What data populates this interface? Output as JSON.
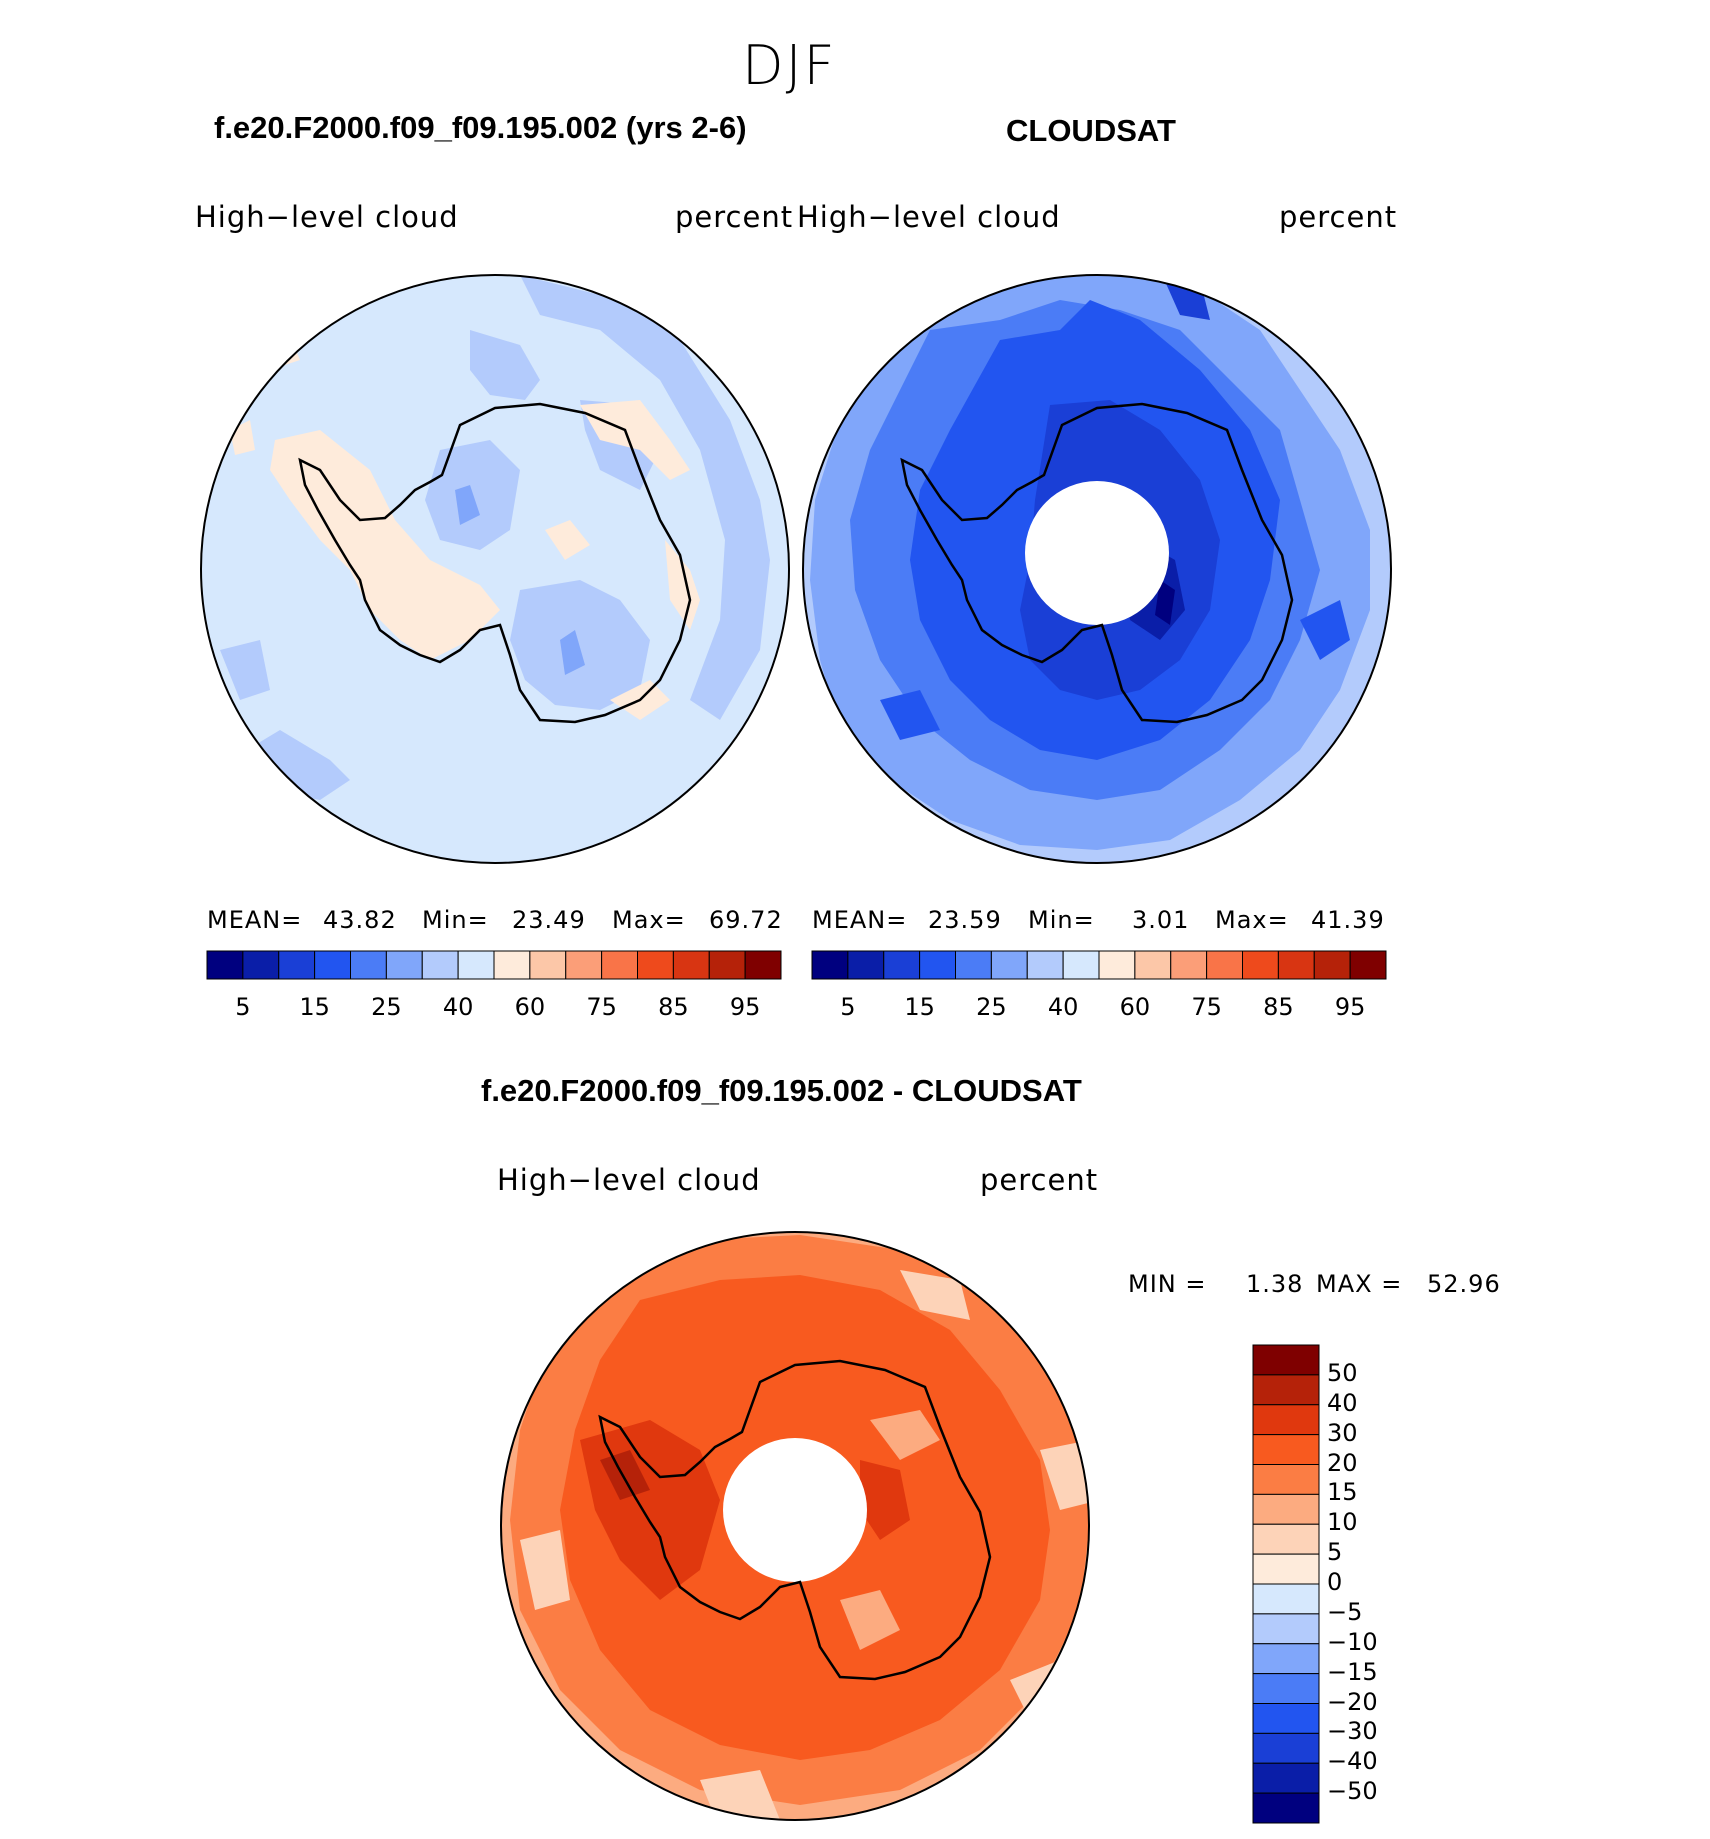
{
  "page_title": "DJF",
  "panels": [
    {
      "id": "model",
      "title": "f.e20.F2000.f09_f09.195.002 (yrs 2-6)",
      "variable": "High−level  cloud",
      "units": "percent",
      "stats": {
        "mean_label": "MEAN=",
        "mean": "43.82",
        "min_label": "Min=",
        "min": "23.49",
        "max_label": "Max=",
        "max": "69.72"
      },
      "colorbar_ticks": [
        "5",
        "15",
        "25",
        "40",
        "60",
        "75",
        "85",
        "95"
      ]
    },
    {
      "id": "obs",
      "title": "CLOUDSAT",
      "variable": "High−level  cloud",
      "units": "percent",
      "stats": {
        "mean_label": "MEAN=",
        "mean": "23.59",
        "min_label": "Min=",
        "min": "3.01",
        "max_label": "Max=",
        "max": "41.39"
      },
      "colorbar_ticks": [
        "5",
        "15",
        "25",
        "40",
        "60",
        "75",
        "85",
        "95"
      ]
    }
  ],
  "diff_panel": {
    "title": "f.e20.F2000.f09_f09.195.002 - CLOUDSAT",
    "variable": "High−level  cloud",
    "units": "percent",
    "min_label": "MIN =",
    "min": "1.38",
    "max_label": "MAX =",
    "max": "52.96",
    "colorbar_ticks": [
      "50",
      "40",
      "30",
      "20",
      "15",
      "10",
      "5",
      "0",
      "−5",
      "−10",
      "−15",
      "−20",
      "−30",
      "−40",
      "−50"
    ]
  },
  "colors": {
    "abs_scale": [
      "#00007f",
      "#0a1ea8",
      "#1a3fd6",
      "#2255f0",
      "#4b7cf6",
      "#80a6fa",
      "#b3cbfc",
      "#d6e8fd",
      "#feebdb",
      "#fcc7a8",
      "#fb9e78",
      "#f97448",
      "#ee4a1c",
      "#d83512",
      "#b52209",
      "#7f0000"
    ],
    "diff_scale": [
      "#7f0000",
      "#b52209",
      "#e0380e",
      "#f85a1f",
      "#fb7d44",
      "#fcab80",
      "#fdd3b8",
      "#feebdb",
      "#d6e8fd",
      "#b3cbfc",
      "#80a6fa",
      "#4b7cf6",
      "#2255f0",
      "#1a3fd6",
      "#0a1ea8",
      "#00007f"
    ]
  }
}
